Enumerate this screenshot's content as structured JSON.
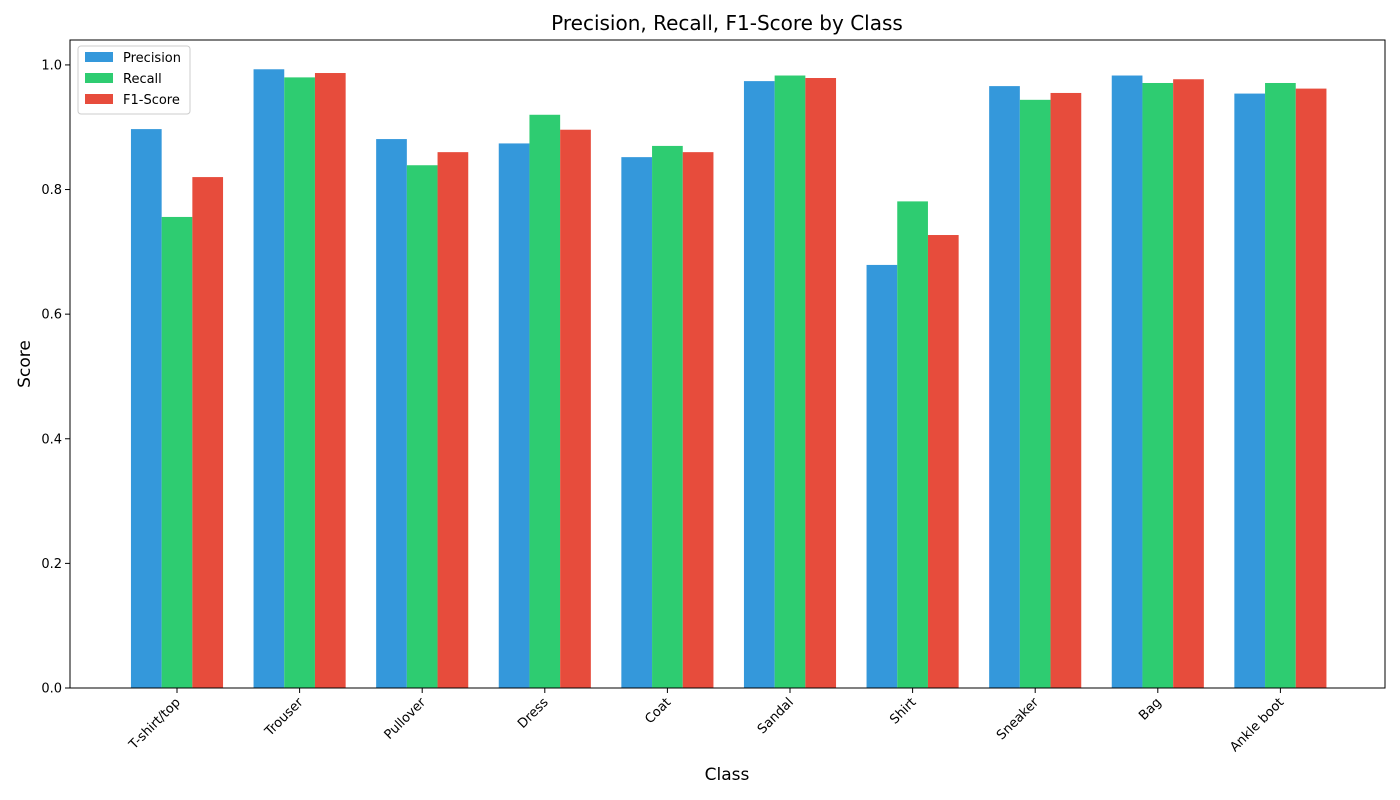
{
  "chart_data": {
    "type": "bar",
    "title": "Precision, Recall, F1-Score by Class",
    "xlabel": "Class",
    "ylabel": "Score",
    "ylim": [
      0,
      1.04
    ],
    "yticks": [
      "0.0",
      "0.2",
      "0.4",
      "0.6",
      "0.8",
      "1.0"
    ],
    "ytick_values": [
      0,
      0.2,
      0.4,
      0.6,
      0.8,
      1.0
    ],
    "grid": false,
    "legend_position": "top-left",
    "categories": [
      "T-shirt/top",
      "Trouser",
      "Pullover",
      "Dress",
      "Coat",
      "Sandal",
      "Shirt",
      "Sneaker",
      "Bag",
      "Ankle boot"
    ],
    "series": [
      {
        "name": "Precision",
        "color": "#3498db",
        "values": [
          0.897,
          0.993,
          0.881,
          0.874,
          0.852,
          0.974,
          0.679,
          0.966,
          0.983,
          0.954
        ]
      },
      {
        "name": "Recall",
        "color": "#2ecc71",
        "values": [
          0.756,
          0.98,
          0.839,
          0.92,
          0.87,
          0.983,
          0.781,
          0.944,
          0.971,
          0.971
        ]
      },
      {
        "name": "F1-Score",
        "color": "#e74c3c",
        "values": [
          0.82,
          0.987,
          0.86,
          0.896,
          0.86,
          0.979,
          0.727,
          0.955,
          0.977,
          0.962
        ]
      }
    ]
  }
}
